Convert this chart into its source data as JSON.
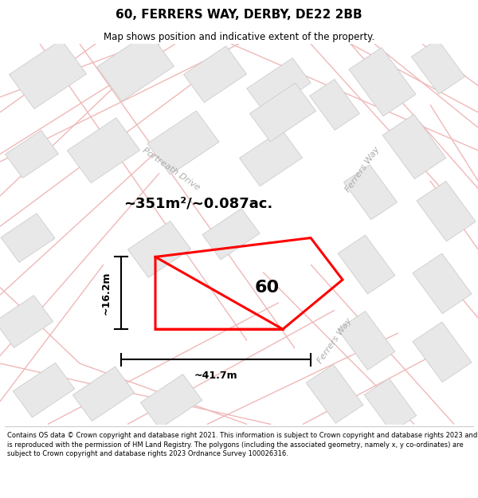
{
  "title": "60, FERRERS WAY, DERBY, DE22 2BB",
  "subtitle": "Map shows position and indicative extent of the property.",
  "footer": "Contains OS data © Crown copyright and database right 2021. This information is subject to Crown copyright and database rights 2023 and is reproduced with the permission of HM Land Registry. The polygons (including the associated geometry, namely x, y co-ordinates) are subject to Crown copyright and database rights 2023 Ordnance Survey 100026316.",
  "area_label": "~351m²/~0.087ac.",
  "width_label": "~41.7m",
  "height_label": "~16.2m",
  "plot_number": "60",
  "map_bg": "#ffffff",
  "road_line_color": "#f0b8b8",
  "building_fill": "#e8e8e8",
  "building_stroke": "#cccccc",
  "street_label_portreath": "Portreath Drive",
  "street_label_ferrers": "Ferrers Way",
  "street_label_ferrers2": "Ferrers Way",
  "title_fontsize": 11,
  "subtitle_fontsize": 8.5,
  "footer_fontsize": 6.0
}
